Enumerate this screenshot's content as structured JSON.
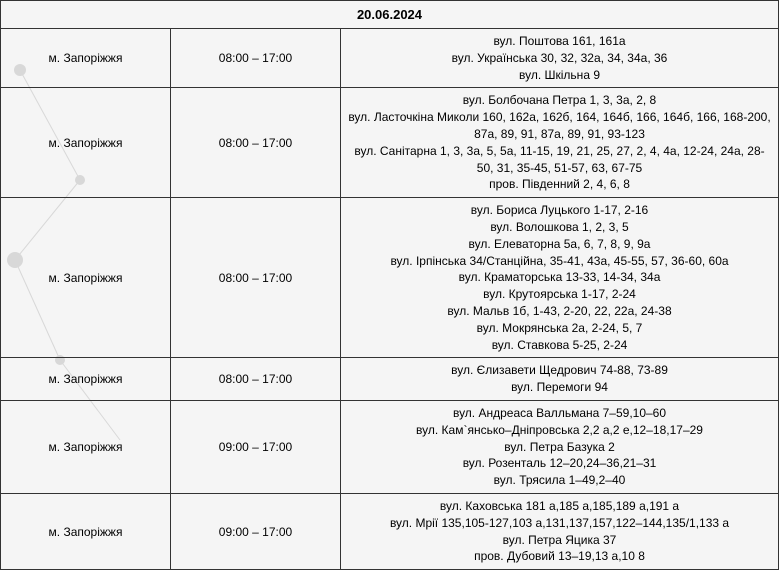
{
  "header_date": "20.06.2024",
  "city_label": "м. Запоріжжя",
  "rows": [
    {
      "time": "08:00 – 17:00",
      "addresses": [
        "вул. Поштова 161, 161а",
        "вул. Українська 30, 32, 32а, 34, 34а, 36",
        "вул. Шкільна  9"
      ]
    },
    {
      "time": "08:00 – 17:00",
      "addresses": [
        "вул. Болбочана Петра  1, 3, 3а, 2, 8",
        "вул. Ласточкіна Миколи 160, 162а, 162б, 164, 164б, 166, 164б, 166, 168-200, 87а, 89, 91, 87а, 89, 91, 93-123",
        "вул. Санітарна 1, 3, 3а, 5, 5а, 11-15, 19, 21, 25, 27, 2, 4, 4а, 12-24, 24а, 28-50, 31, 35-45, 51-57, 63, 67-75",
        "пров. Південний 2, 4, 6, 8"
      ]
    },
    {
      "time": "08:00 – 17:00",
      "addresses": [
        "вул. Бориса Луцького  1-17, 2-16",
        "вул. Волошкова  1, 2, 3, 5",
        "вул. Елеваторна 5а, 6, 7, 8, 9, 9а",
        "вул. Ірпінська  34/Станційна, 35-41, 43а, 45-55, 57, 36-60, 60а",
        "вул. Краматорська 13-33, 14-34, 34а",
        "вул. Крутоярська 1-17, 2-24",
        "вул. Мальв 1б, 1-43, 2-20, 22, 22а, 24-38",
        "вул. Мокрянська 2а, 2-24, 5, 7",
        "вул. Ставкова 5-25, 2-24"
      ]
    },
    {
      "time": "08:00 – 17:00",
      "addresses": [
        "вул. Єлизавети Щедрович 74-88, 73-89",
        "вул. Перемоги 94"
      ]
    },
    {
      "time": "09:00 – 17:00",
      "addresses": [
        "вул. Андреаса Валльмана 7–59,10–60",
        "вул. Кам`янсько–Дніпровська 2,2 а,2 е,12–18,17–29",
        "вул. Петра Базука 2",
        "вул. Розенталь 12–20,24–36,21–31",
        "вул. Трясила 1–49,2–40"
      ]
    },
    {
      "time": "09:00 – 17:00",
      "addresses": [
        "вул. Каховська 181 а,185 а,185,189 а,191 а",
        "вул. Мрії 135,105-127,103 а,131,137,157,122–144,135/1,133 а",
        "вул. Петра Яцика 37",
        "пров. Дубовий 13–19,13 а,10 8"
      ]
    }
  ],
  "colors": {
    "border": "#333333",
    "text": "#000000",
    "bg": "#f5f5f5",
    "decoration": "#d0d0d0"
  }
}
